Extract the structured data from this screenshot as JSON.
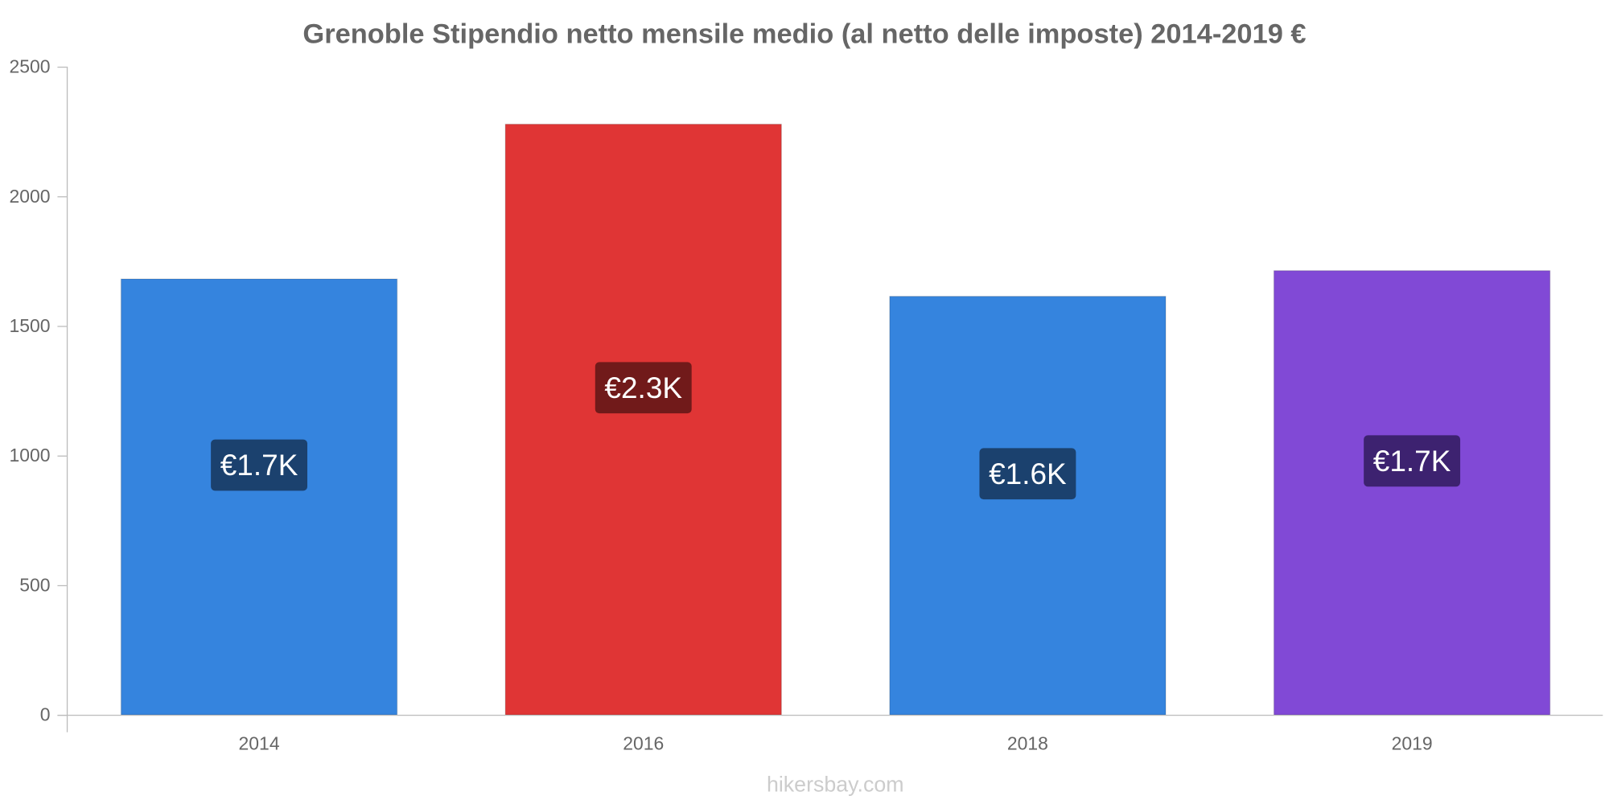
{
  "chart_data": {
    "type": "bar",
    "title": "Grenoble Stipendio netto mensile medio (al netto delle imposte) 2014-2019 €",
    "xlabel": "",
    "ylabel": "",
    "ylim": [
      0,
      2500
    ],
    "yticks": [
      "0",
      "500",
      "1000",
      "1500",
      "2000",
      "2500"
    ],
    "categories": [
      "2014",
      "2016",
      "2018",
      "2019"
    ],
    "values": [
      1681,
      2278,
      1614,
      1713
    ],
    "data_labels": [
      "€1.7K",
      "€2.3K",
      "€1.6K",
      "€1.7K"
    ],
    "bar_colors": [
      "#3584de",
      "#e03535",
      "#3584de",
      "#8149d6"
    ],
    "label_colors": [
      "#1b416e",
      "#711a1a",
      "#1b416e",
      "#3d2270"
    ],
    "grid": false
  },
  "watermark": "hikersbay.com"
}
